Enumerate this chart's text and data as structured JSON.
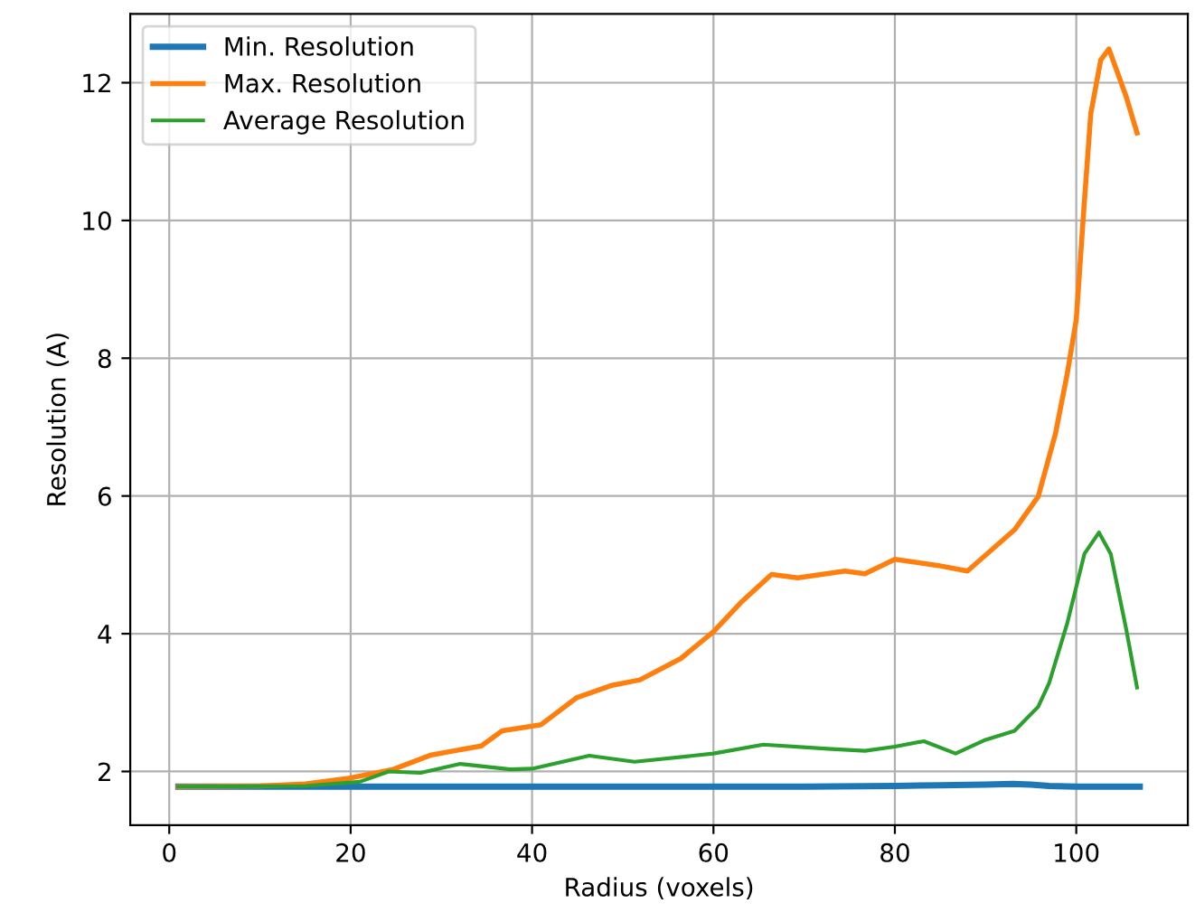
{
  "chart_data": {
    "type": "line",
    "xlabel": "Radius (voxels)",
    "ylabel": "Resolution (A)",
    "xlim": [
      -4.3,
      112.3
    ],
    "ylim": [
      1.22,
      13.0
    ],
    "xticks": [
      0,
      20,
      40,
      60,
      80,
      100
    ],
    "yticks": [
      2,
      4,
      6,
      8,
      10,
      12
    ],
    "grid": true,
    "legend": "top left",
    "series": [
      {
        "name": "Min. Resolution",
        "color": "#1f77b4",
        "x": [
          1,
          20,
          40,
          60,
          70,
          80,
          85,
          90,
          93,
          95,
          97,
          100,
          107
        ],
        "values": [
          1.78,
          1.78,
          1.78,
          1.78,
          1.78,
          1.79,
          1.8,
          1.81,
          1.82,
          1.81,
          1.79,
          1.78,
          1.78
        ]
      },
      {
        "name": "Max. Resolution",
        "color": "#ff7f0e",
        "x": [
          1,
          10,
          15,
          19.8,
          24.7,
          28.9,
          34.4,
          36.7,
          41,
          44.9,
          48.8,
          51.9,
          56.4,
          60,
          63,
          66.4,
          69.3,
          74.5,
          76.7,
          80,
          84.8,
          88,
          93.2,
          95.8,
          97.7,
          99,
          100,
          100.8,
          101.6,
          102.7,
          103.6,
          105.5,
          106.7
        ],
        "values": [
          1.78,
          1.79,
          1.82,
          1.9,
          2.03,
          2.24,
          2.37,
          2.59,
          2.68,
          3.07,
          3.25,
          3.33,
          3.64,
          4.03,
          4.45,
          4.86,
          4.81,
          4.91,
          4.87,
          5.08,
          4.99,
          4.91,
          5.51,
          5.99,
          6.9,
          7.77,
          8.56,
          10.1,
          11.55,
          12.33,
          12.49,
          11.8,
          11.27
        ]
      },
      {
        "name": "Average Resolution",
        "color": "#2ca02c",
        "x": [
          1,
          15,
          21,
          24.2,
          27.7,
          32.1,
          37.6,
          40,
          46.3,
          51.3,
          60,
          65.5,
          72.6,
          76.7,
          80,
          83.2,
          86.7,
          90,
          93.2,
          95.8,
          97,
          99,
          100.9,
          102.5,
          103.8,
          105.5,
          106.7
        ],
        "values": [
          1.78,
          1.79,
          1.85,
          2.0,
          1.98,
          2.11,
          2.03,
          2.04,
          2.23,
          2.14,
          2.26,
          2.39,
          2.33,
          2.3,
          2.36,
          2.44,
          2.26,
          2.46,
          2.59,
          2.94,
          3.28,
          4.15,
          5.16,
          5.47,
          5.16,
          4.07,
          3.22
        ]
      }
    ]
  }
}
